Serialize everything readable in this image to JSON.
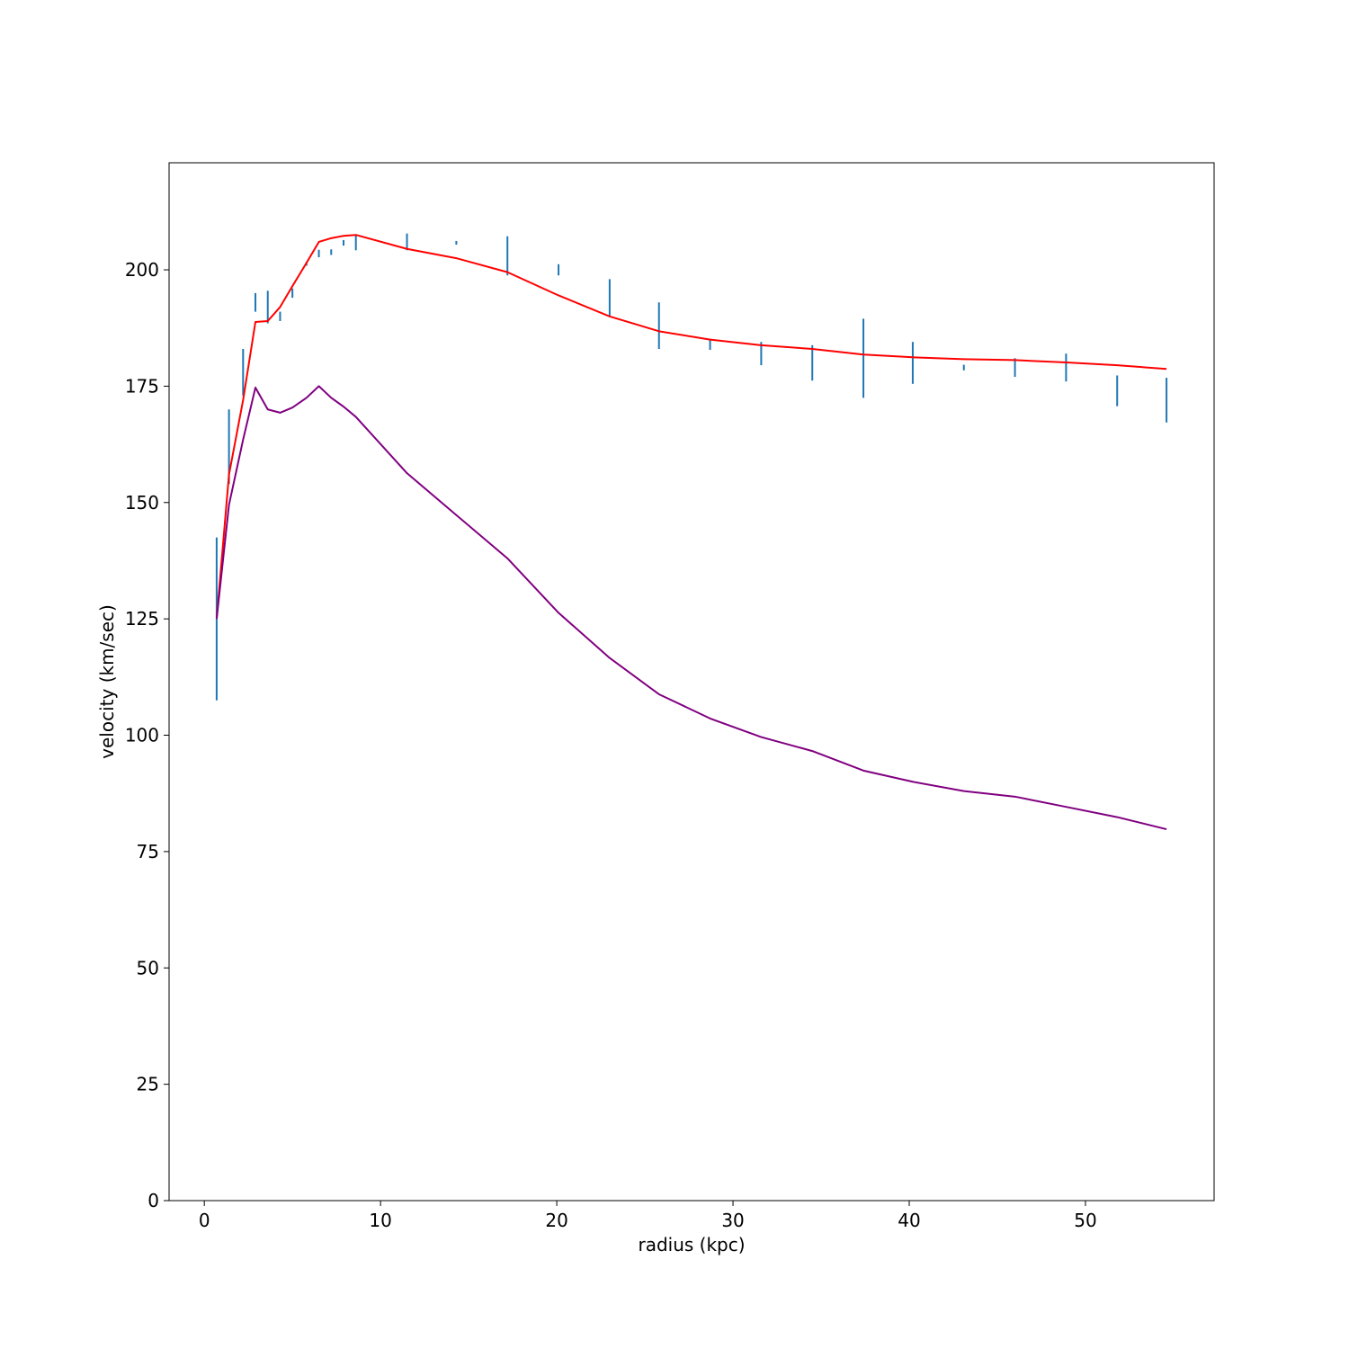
{
  "chart_data": {
    "type": "line",
    "title": "",
    "xlabel": "radius (kpc)",
    "ylabel": "velocity (km/sec)",
    "xlim": [
      -2,
      57.3
    ],
    "ylim": [
      0,
      223
    ],
    "xticks": [
      0,
      10,
      20,
      30,
      40,
      50
    ],
    "yticks": [
      0,
      25,
      50,
      75,
      100,
      125,
      150,
      175,
      200
    ],
    "grid": false,
    "legend": "none",
    "errorbars": {
      "color": "#1f77b4",
      "x": [
        0.7,
        1.4,
        2.2,
        2.9,
        3.6,
        4.3,
        5.0,
        5.8,
        6.5,
        7.2,
        7.9,
        8.6,
        11.5,
        14.3,
        17.2,
        20.1,
        23.0,
        25.8,
        28.7,
        31.6,
        34.5,
        37.4,
        40.2,
        43.1,
        46.0,
        48.9,
        51.8,
        54.6
      ],
      "y": [
        125.0,
        162.0,
        178.0,
        193.0,
        192.0,
        190.0,
        195.0,
        201.3,
        203.5,
        203.8,
        205.8,
        205.8,
        206.0,
        205.8,
        203.0,
        200.0,
        194.0,
        188.0,
        184.0,
        182.0,
        180.0,
        181.0,
        180.0,
        179.0,
        179.0,
        179.0,
        174.0,
        172.0
      ],
      "err": [
        17.5,
        8.0,
        5.0,
        2.0,
        3.5,
        1.0,
        1.0,
        0.4,
        0.8,
        0.6,
        0.6,
        1.6,
        1.8,
        0.4,
        4.2,
        1.2,
        4.0,
        5.0,
        1.2,
        2.5,
        3.8,
        8.5,
        4.5,
        0.6,
        2.0,
        3.0,
        3.3,
        4.8
      ]
    },
    "series": [
      {
        "color": "#ff0000",
        "x": [
          0.7,
          1.4,
          2.2,
          2.9,
          3.6,
          4.3,
          5.0,
          5.8,
          6.5,
          7.2,
          7.9,
          8.6,
          11.5,
          14.3,
          17.2,
          20.1,
          23.0,
          25.8,
          28.7,
          31.6,
          34.5,
          37.4,
          40.2,
          43.1,
          46.0,
          48.9,
          51.8,
          54.6
        ],
        "values": [
          125.0,
          156.0,
          172.0,
          188.8,
          189.0,
          192.0,
          196.5,
          201.5,
          206.0,
          206.8,
          207.3,
          207.5,
          204.5,
          202.5,
          199.5,
          194.5,
          190.0,
          186.8,
          185.0,
          183.8,
          183.0,
          181.8,
          181.2,
          180.8,
          180.6,
          180.1,
          179.5,
          178.7
        ]
      },
      {
        "color": "#800080",
        "x": [
          0.7,
          1.4,
          2.2,
          2.9,
          3.6,
          4.3,
          5.0,
          5.8,
          6.5,
          7.2,
          7.9,
          8.6,
          11.5,
          14.3,
          17.2,
          20.1,
          23.0,
          25.8,
          28.7,
          31.6,
          34.5,
          37.4,
          40.2,
          43.1,
          46.0,
          48.9,
          51.8,
          54.6
        ],
        "values": [
          125.0,
          149.5,
          163.5,
          174.7,
          170.0,
          169.3,
          170.4,
          172.5,
          175.0,
          172.5,
          170.6,
          168.4,
          156.3,
          147.3,
          138.0,
          126.3,
          116.6,
          108.8,
          103.6,
          99.6,
          96.6,
          92.4,
          90.0,
          88.0,
          86.8,
          84.6,
          82.4,
          79.8
        ]
      }
    ]
  }
}
